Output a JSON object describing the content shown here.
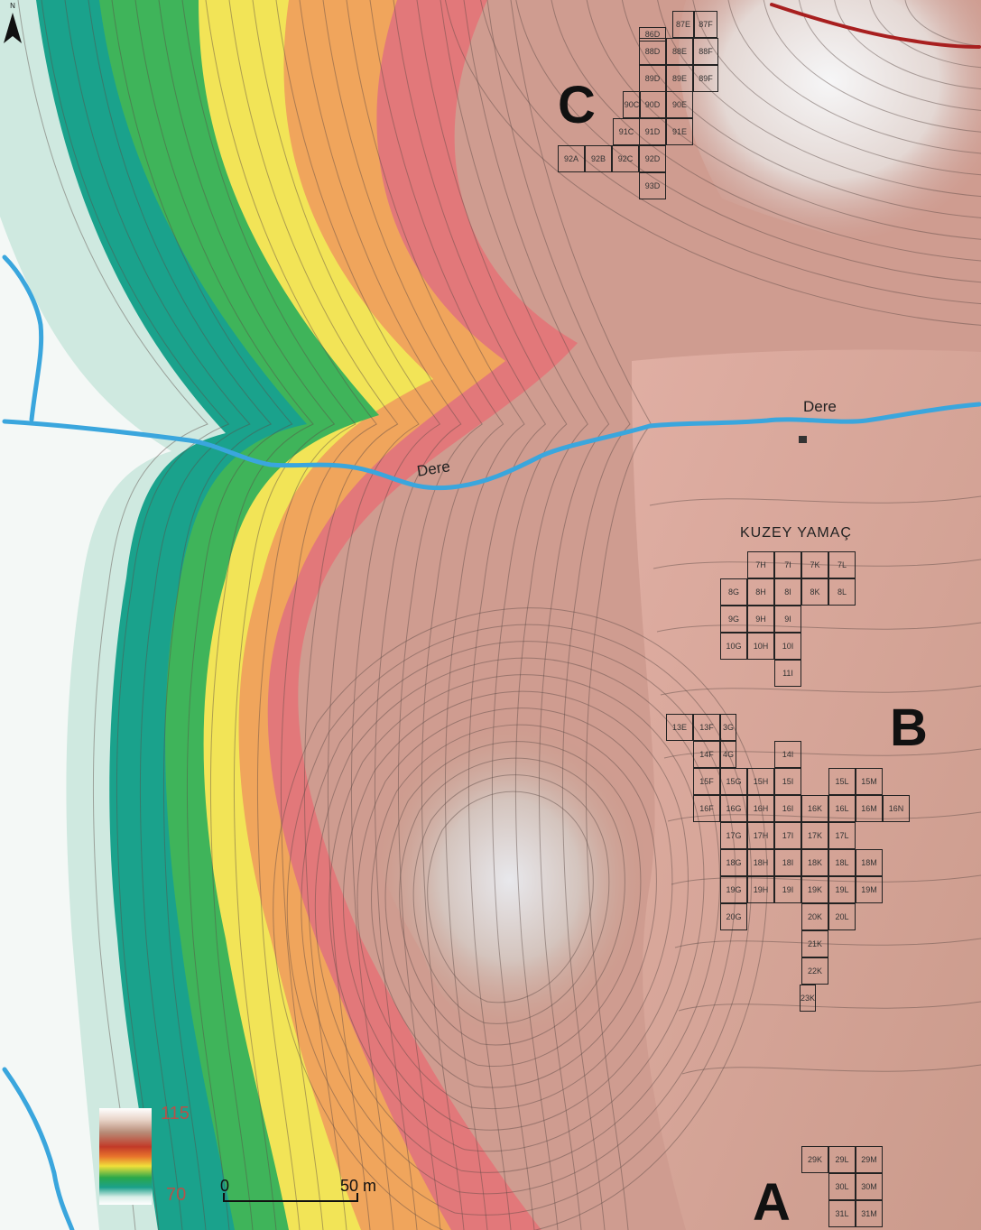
{
  "legend": {
    "max_label": "115",
    "min_label": "70"
  },
  "scale_bar": {
    "start_label": "0",
    "end_label": "50 m"
  },
  "north_label": "N",
  "streams": [
    {
      "label": "Dere"
    },
    {
      "label": "Dere"
    }
  ],
  "area_label": "KUZEY YAMAÇ",
  "zones": {
    "a": "A",
    "b": "B",
    "c": "C"
  },
  "grid_c": [
    "87E",
    "87F",
    "88D",
    "88E",
    "88F",
    "89D",
    "89E",
    "89F",
    "90C",
    "90D",
    "90E",
    "91C",
    "91D",
    "91E",
    "92A",
    "92B",
    "92C",
    "92D",
    "93D",
    "86D"
  ],
  "grid_kuzey": [
    "7H",
    "7I",
    "7K",
    "7L",
    "8G",
    "8H",
    "8I",
    "8K",
    "8L",
    "9G",
    "9H",
    "9I",
    "10G",
    "10H",
    "10I",
    "11I"
  ],
  "grid_b": [
    "13E",
    "13F",
    "3G",
    "14F",
    "4G",
    "14I",
    "15F",
    "15G",
    "15H",
    "15I",
    "15L",
    "15M",
    "16F",
    "16G",
    "16H",
    "16I",
    "16K",
    "16L",
    "16M",
    "16N",
    "17G",
    "17H",
    "17I",
    "17K",
    "17L",
    "18G",
    "18H",
    "18I",
    "18K",
    "18L",
    "18M",
    "19G",
    "19H",
    "19I",
    "19K",
    "19L",
    "19M",
    "20G",
    "20K",
    "20L",
    "21K",
    "22K",
    "23K"
  ],
  "grid_a": [
    "29K",
    "29L",
    "29M",
    "30L",
    "30M",
    "31L",
    "31M"
  ],
  "colors": {
    "stream": "#3aa6dd",
    "road": "#a81f1f",
    "grid": "#222222"
  }
}
